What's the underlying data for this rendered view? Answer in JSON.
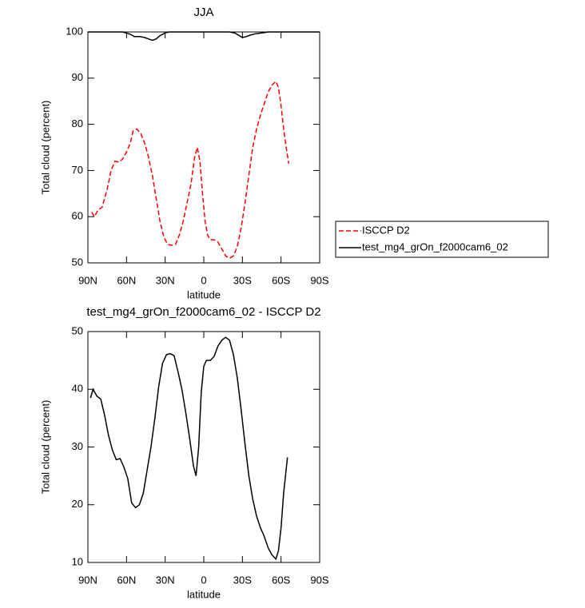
{
  "chart_data": [
    {
      "type": "line",
      "title": "JJA",
      "xlabel": "latitude",
      "ylabel": "Total cloud (percent)",
      "xlim": [
        90,
        -90
      ],
      "ylim": [
        50,
        100
      ],
      "xticks": [
        {
          "value": 90,
          "label": "90N"
        },
        {
          "value": 60,
          "label": "60N"
        },
        {
          "value": 30,
          "label": "30N"
        },
        0,
        {
          "value": -30,
          "label": "30S"
        },
        {
          "value": -60,
          "label": "60S"
        },
        {
          "value": -90,
          "label": "90S"
        }
      ],
      "yticks": [
        50,
        60,
        70,
        80,
        90,
        100
      ],
      "legend": "right",
      "series": [
        {
          "name": "ISCCP D2",
          "color": "#ff0000",
          "dash": true,
          "x": [
            87,
            85,
            82,
            79,
            75,
            72,
            69,
            66,
            63,
            60,
            57,
            55,
            52,
            49,
            46,
            43,
            40,
            37,
            34,
            31,
            28,
            25,
            22,
            19,
            16,
            13,
            10,
            7,
            5,
            3,
            1,
            -1,
            -3,
            -5,
            -8,
            -11,
            -14,
            -17,
            -20,
            -23,
            -26,
            -29,
            -32,
            -35,
            -38,
            -41,
            -44,
            -47,
            -50,
            -53,
            -56,
            -58,
            -60,
            -62,
            -64,
            -66
          ],
          "values": [
            61,
            60,
            61.5,
            62,
            66,
            70,
            72,
            71.8,
            72.5,
            74,
            76,
            78.5,
            79,
            78,
            76,
            73,
            69,
            64,
            59,
            55.5,
            54,
            53.8,
            54,
            56,
            59,
            63,
            67,
            73,
            75,
            72,
            65,
            59,
            56,
            55,
            55,
            54.5,
            53,
            51.5,
            51,
            51.5,
            53.5,
            57.5,
            63,
            69,
            75,
            79,
            82,
            84.5,
            87,
            88.5,
            89.3,
            88,
            84,
            79,
            75,
            71.5
          ]
        },
        {
          "name": "test_mg4_grOn_f2000cam6_02",
          "color": "#000000",
          "dash": false,
          "x": [
            90,
            80,
            70,
            63,
            57,
            54,
            50,
            46,
            43,
            40,
            37,
            34,
            30,
            27,
            20,
            10,
            0,
            -10,
            -20,
            -24,
            -27,
            -30,
            -33,
            -36,
            -40,
            -45,
            -50,
            -60,
            -70,
            -80,
            -90
          ],
          "values": [
            100,
            100,
            100,
            100,
            99.5,
            99,
            99,
            98.8,
            98.5,
            98.2,
            98.5,
            99.2,
            99.8,
            100,
            100,
            100,
            100,
            100,
            100,
            99.8,
            99.3,
            98.8,
            99,
            99.3,
            99.6,
            99.8,
            100,
            100,
            100,
            100,
            100
          ]
        }
      ]
    },
    {
      "type": "line",
      "title": "test_mg4_grOn_f2000cam6_02 - ISCCP D2",
      "xlabel": "latitude",
      "ylabel": "Total cloud (percent)",
      "xlim": [
        90,
        -90
      ],
      "ylim": [
        10,
        50
      ],
      "xticks": [
        {
          "value": 90,
          "label": "90N"
        },
        {
          "value": 60,
          "label": "60N"
        },
        {
          "value": 30,
          "label": "30N"
        },
        0,
        {
          "value": -30,
          "label": "30S"
        },
        {
          "value": -60,
          "label": "60S"
        },
        {
          "value": -90,
          "label": "90S"
        }
      ],
      "yticks": [
        10,
        20,
        30,
        40,
        50
      ],
      "color": "#000000",
      "x": [
        88,
        86,
        83,
        80,
        77,
        74,
        71,
        68,
        65,
        62,
        59,
        56,
        53,
        50,
        47,
        44,
        41,
        38,
        35,
        32,
        29,
        26,
        23,
        20,
        17,
        14,
        11,
        8,
        6,
        4,
        2,
        0,
        -2,
        -5,
        -8,
        -11,
        -14,
        -17,
        -20,
        -23,
        -26,
        -29,
        -32,
        -35,
        -38,
        -41,
        -44,
        -47,
        -50,
        -53,
        -56,
        -58,
        -60,
        -62,
        -65
      ],
      "values": [
        38.5,
        40,
        38.8,
        38.3,
        35.5,
        32,
        29.5,
        27.8,
        28,
        26.5,
        24.5,
        20.3,
        19.5,
        20,
        22,
        26,
        30,
        35,
        40.5,
        44.5,
        46,
        46.2,
        45.8,
        43,
        40,
        36,
        31.5,
        26.7,
        25,
        30,
        39.5,
        44,
        45,
        45,
        45.7,
        47.5,
        48.5,
        49,
        48.5,
        46,
        42,
        36.5,
        30.5,
        25,
        21,
        18,
        16,
        14.5,
        12.5,
        11.3,
        10.6,
        12,
        16,
        22,
        28.2
      ]
    }
  ]
}
